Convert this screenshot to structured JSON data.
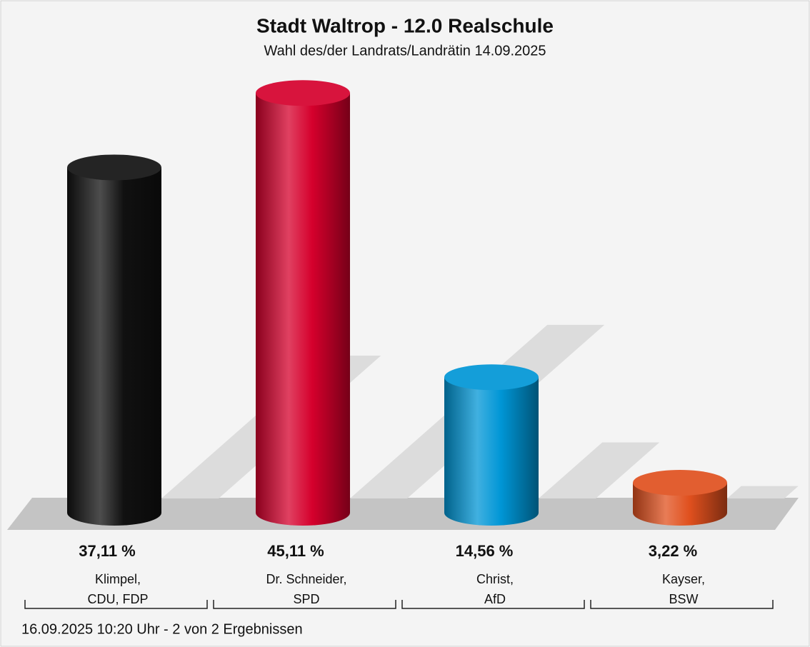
{
  "chart_data": {
    "type": "bar3d",
    "title": "Stadt Waltrop - 12.0 Realschule",
    "subtitle": "Wahl des/der Landrats/Landrätin 14.09.2025",
    "categories": [
      [
        "Klimpel,",
        "CDU, FDP"
      ],
      [
        "Dr. Schneider,",
        "SPD"
      ],
      [
        "Christ,",
        "AfD"
      ],
      [
        "Kayser,",
        "BSW"
      ]
    ],
    "values": [
      37.11,
      45.11,
      14.56,
      3.22
    ],
    "value_labels": [
      "37,11 %",
      "45,11 %",
      "14,56 %",
      "3,22 %"
    ],
    "colors": [
      "#111111",
      "#d5002c",
      "#0096d6",
      "#e0501e"
    ],
    "footnote": "16.09.2025 10:20 Uhr - 2 von 2 Ergebnissen"
  }
}
